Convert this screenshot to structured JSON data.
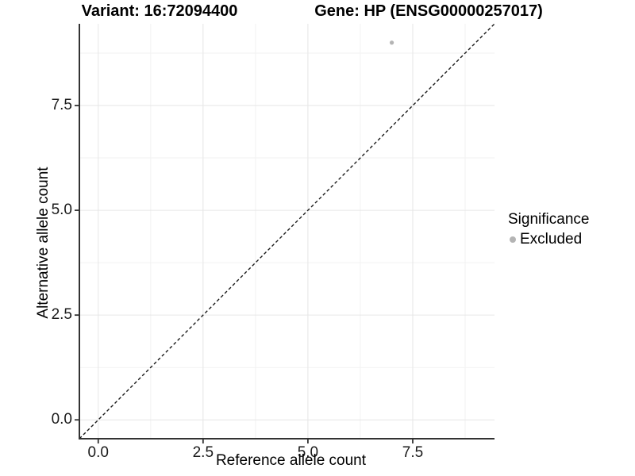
{
  "chart_data": {
    "type": "scatter",
    "titles": {
      "left": "Variant: 16:72094400",
      "right": "Gene: HP (ENSG00000257017)"
    },
    "xlabel": "Reference allele count",
    "ylabel": "Alternative allele count",
    "xlim": [
      -0.45,
      9.45
    ],
    "ylim": [
      -0.45,
      9.45
    ],
    "xticks": {
      "values": [
        0,
        2.5,
        5,
        7.5
      ],
      "labels": [
        "0.0",
        "2.5",
        "5.0",
        "7.5"
      ]
    },
    "yticks": {
      "values": [
        0,
        2.5,
        5,
        7.5
      ],
      "labels": [
        "0.0",
        "2.5",
        "5.0",
        "7.5"
      ]
    },
    "minor_tick_values": [
      1.25,
      3.75,
      6.25,
      8.75
    ],
    "grid": {
      "major": true,
      "minor": true
    },
    "series": [
      {
        "name": "Excluded",
        "points": [
          {
            "x": 7,
            "y": 9
          }
        ],
        "color": "#b4b4b4"
      }
    ],
    "reference_line": {
      "kind": "y = x",
      "style": "dashed",
      "color": "#1a1a1a"
    },
    "legend": {
      "title": "Significance",
      "position": "right",
      "entries": [
        {
          "label": "Excluded",
          "color": "#b4b4b4"
        }
      ]
    }
  },
  "colors": {
    "background": "#ffffff",
    "grid_major": "#e6e6e6",
    "grid_minor": "#f2f2f2",
    "axis_line": "#333333",
    "tick_mark": "#333333",
    "tick_label": "#1a1a1a",
    "text": "#000000"
  }
}
